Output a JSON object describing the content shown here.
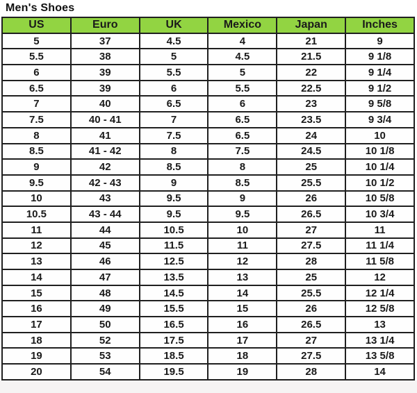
{
  "title": "Men's Shoes",
  "chart_data": {
    "type": "table",
    "title": "Men's Shoes",
    "columns": [
      "US",
      "Euro",
      "UK",
      "Mexico",
      "Japan",
      "Inches"
    ],
    "rows": [
      [
        "5",
        "37",
        "4.5",
        "4",
        "21",
        "9"
      ],
      [
        "5.5",
        "38",
        "5",
        "4.5",
        "21.5",
        "9 1/8"
      ],
      [
        "6",
        "39",
        "5.5",
        "5",
        "22",
        "9 1/4"
      ],
      [
        "6.5",
        "39",
        "6",
        "5.5",
        "22.5",
        "9 1/2"
      ],
      [
        "7",
        "40",
        "6.5",
        "6",
        "23",
        "9 5/8"
      ],
      [
        "7.5",
        "40 - 41",
        "7",
        "6.5",
        "23.5",
        "9 3/4"
      ],
      [
        "8",
        "41",
        "7.5",
        "6.5",
        "24",
        "10"
      ],
      [
        "8.5",
        "41 - 42",
        "8",
        "7.5",
        "24.5",
        "10 1/8"
      ],
      [
        "9",
        "42",
        "8.5",
        "8",
        "25",
        "10 1/4"
      ],
      [
        "9.5",
        "42 - 43",
        "9",
        "8.5",
        "25.5",
        "10 1/2"
      ],
      [
        "10",
        "43",
        "9.5",
        "9",
        "26",
        "10 5/8"
      ],
      [
        "10.5",
        "43 - 44",
        "9.5",
        "9.5",
        "26.5",
        "10 3/4"
      ],
      [
        "11",
        "44",
        "10.5",
        "10",
        "27",
        "11"
      ],
      [
        "12",
        "45",
        "11.5",
        "11",
        "27.5",
        "11 1/4"
      ],
      [
        "13",
        "46",
        "12.5",
        "12",
        "28",
        "11 5/8"
      ],
      [
        "14",
        "47",
        "13.5",
        "13",
        "25",
        "12"
      ],
      [
        "15",
        "48",
        "14.5",
        "14",
        "25.5",
        "12 1/4"
      ],
      [
        "16",
        "49",
        "15.5",
        "15",
        "26",
        "12 5/8"
      ],
      [
        "17",
        "50",
        "16.5",
        "16",
        "26.5",
        "13"
      ],
      [
        "18",
        "52",
        "17.5",
        "17",
        "27",
        "13 1/4"
      ],
      [
        "19",
        "53",
        "18.5",
        "18",
        "27.5",
        "13 5/8"
      ],
      [
        "20",
        "54",
        "19.5",
        "19",
        "28",
        "14"
      ]
    ]
  },
  "colors": {
    "header_bg": "#92D442",
    "border": "#1F1F1F",
    "text": "#1A1A1A",
    "page_bg": "#FFFFFF",
    "below_table_bg": "#F6F4F4"
  }
}
